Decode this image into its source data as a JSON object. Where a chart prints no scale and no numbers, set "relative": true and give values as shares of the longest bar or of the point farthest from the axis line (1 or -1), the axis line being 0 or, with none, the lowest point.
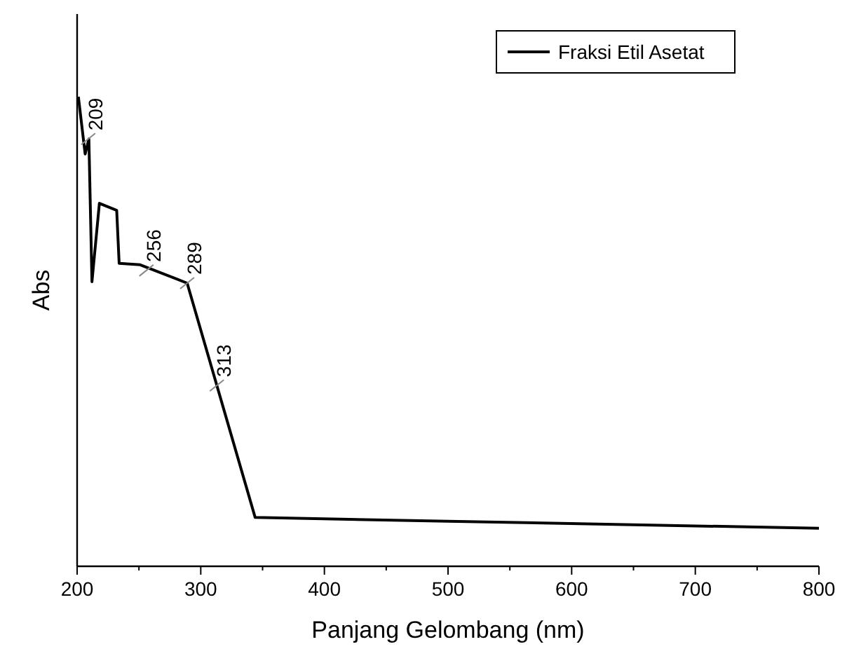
{
  "chart_data": {
    "type": "line",
    "relative": true,
    "xlabel": "Panjang Gelombang (nm)",
    "ylabel": "Abs",
    "legend": "top right",
    "line_style": "solid",
    "grid": false,
    "x": [
      201,
      206.5,
      209.5,
      212,
      218,
      232,
      234,
      251,
      289,
      344,
      500,
      800
    ],
    "series": [
      {
        "name": "Fraksi Etil Asetat",
        "color": "#000000",
        "values": [
          1.0,
          0.878,
          0.91,
          0.606,
          0.773,
          0.758,
          0.645,
          0.642,
          0.603,
          0.104,
          0.096,
          0.081
        ]
      }
    ],
    "xlim": [
      200,
      800
    ],
    "xticks": [
      200,
      {
        "value": 250,
        "label": null
      },
      300,
      {
        "value": 350,
        "label": null
      },
      400,
      {
        "value": 450,
        "label": null
      },
      500,
      {
        "value": 550,
        "label": null
      },
      600,
      {
        "value": 650,
        "label": null
      },
      700,
      {
        "value": 750,
        "label": null
      },
      800
    ],
    "annotations": [
      {
        "text": "209",
        "x": 209,
        "y": 0.91
      },
      {
        "text": "256",
        "x": 256,
        "y": 0.63
      },
      {
        "text": "289",
        "x": 289,
        "y": 0.603
      },
      {
        "text": "313",
        "x": 313,
        "y": 0.385
      }
    ]
  }
}
